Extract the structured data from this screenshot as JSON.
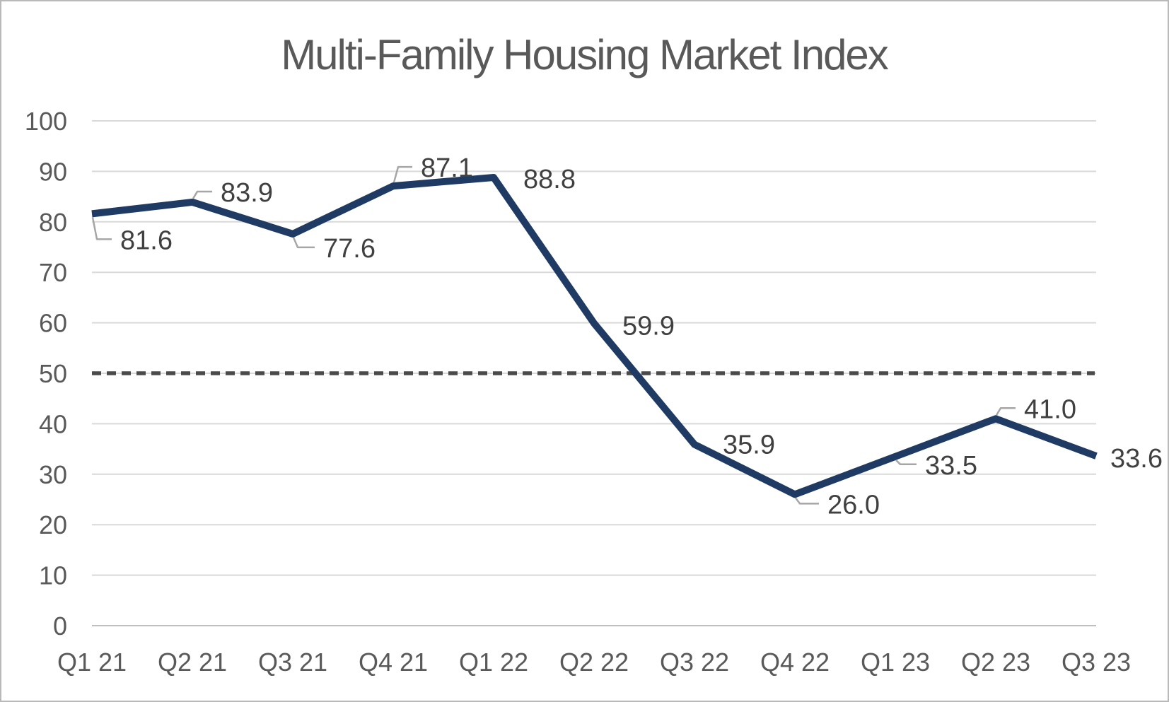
{
  "chart_data": {
    "type": "line",
    "title": "Multi-Family Housing Market Index",
    "categories": [
      "Q1 21",
      "Q2 21",
      "Q3 21",
      "Q4 21",
      "Q1 22",
      "Q2 22",
      "Q3 22",
      "Q4 22",
      "Q1 23",
      "Q2 23",
      "Q3 23"
    ],
    "values": [
      81.6,
      83.9,
      77.6,
      87.1,
      88.8,
      59.9,
      35.9,
      26.0,
      33.5,
      41.0,
      33.6
    ],
    "data_labels": [
      "81.6",
      "83.9",
      "77.6",
      "87.1",
      "88.8",
      "59.9",
      "35.9",
      "26.0",
      "33.5",
      "41.0",
      "33.6"
    ],
    "xlabel": "",
    "ylabel": "",
    "ylim": [
      0,
      100
    ],
    "y_ticks": [
      0,
      10,
      20,
      30,
      40,
      50,
      60,
      70,
      80,
      90,
      100
    ],
    "grid": true,
    "legend": "none",
    "reference_line": {
      "value": 50,
      "style": "dashed"
    },
    "colors": {
      "series": "#1F3A63",
      "reference": "#4A4A4A",
      "gridline": "#D9D9D9",
      "axis_line": "#BFBFBF",
      "tick_label": "#595959",
      "data_label": "#404040",
      "leader": "#A6A6A6",
      "title": "#595959",
      "frame_border": "#B9B9B9",
      "background": "#FFFFFF"
    }
  }
}
